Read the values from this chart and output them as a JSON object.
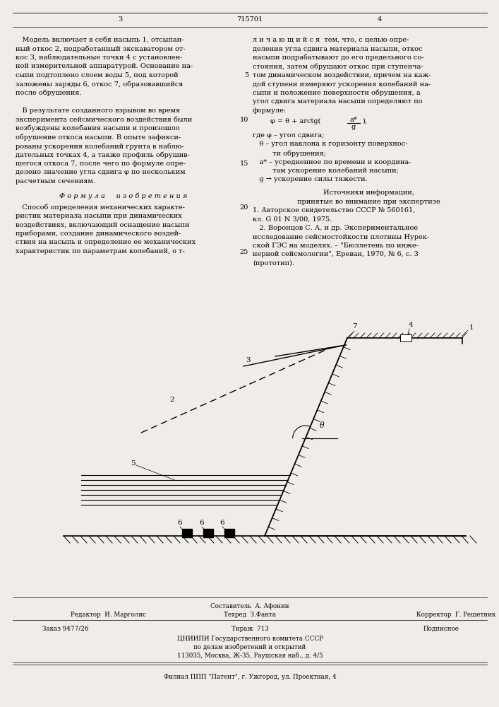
{
  "bg_color": "#f0ede8",
  "page_number_left": "3",
  "page_number_center": "715701",
  "page_number_right": "4",
  "col1_text": [
    "   Модель включает в себя насыпь 1, отсыпан-",
    "ный откос 2, подработанный экскаватором от-",
    "кос 3, наблюдательные точки 4 с установлен-",
    "ной измерительной аппаратурой. Основание на-",
    "сыпи подтоплено слоем воды 5, под которой",
    "заложены заряды 6, откос 7, образовавшийся",
    "после обрушения.",
    "",
    "   В результате созданного взрывом во время",
    "эксперимента сейсмического воздействия были",
    "возбуждены колебания насыпи и произошло",
    "обрушение откоса насыпи. В опыте зафикси-",
    "рованы ускорения колебаний грунта в наблю-",
    "дательных точках 4, а также профиль обрушив-",
    "шегося откоса 7, после чего по формуле опре-",
    "делено значение угла сдвига φ по нескольким",
    "расчетным сечениям."
  ],
  "formula_section_title": "Ф о р м у л а     и з о б р е т е н и я",
  "formula_section_text": [
    "   Способ определения механических характе-",
    "ристик материала насыпи при динамических",
    "воздействиях, включающий оснащение насыпи",
    "приборами, создание динамического воздей-",
    "ствия на насыпь и определение ее механических",
    "характеристик по параметрам колебаний, о т-"
  ],
  "col2_text_top": [
    "л и ч а ю щ и й с я  тем, что, с целью опре-",
    "деления угла сдвига материала насыпи, откос",
    "насыпи подрабатывают до его предельного со-",
    "стояния, затем обрушают откос при ступенча-",
    "том динамическом воздействии, причем на каж-",
    "дой ступени измеряют ускорения колебаний на-",
    "сыпи и положение поверхности обрушения, а",
    "угол сдвига материала насыпи определяют по",
    "формуле:"
  ],
  "col2_text_mid": [
    "где φ – угол сдвига;",
    "   θ – угол наклона к горизонту поверхнос-",
    "         ти обрушения;",
    "   a* – усредненное по времени и координа-",
    "         там ускорение колебаний насыпи;",
    "   g → ускорение силы тяжести."
  ],
  "sources_title": "Источники информации,",
  "sources_subtitle": "принятые во внимание при экспертизе",
  "source1": "1. Авторское свидетельство СССР № 560161,",
  "source1b": "кл. G 01 N 3/00, 1975.",
  "source2": "   2. Воронцов С. А. и др. Экспериментальное",
  "source2b": "исследование сейсмостойкости плотины Нурек-",
  "source2c": "ской ГЭС на моделях. – \"Бюллетень по инже-",
  "source2d": "нерной сейсмологии\", Ереван, 1970, № 6, с. 3",
  "source2e": "(прототип).",
  "line_numbers": [
    "5",
    "10",
    "15",
    "20",
    "25"
  ],
  "footer": {
    "editor": "Редактор  И. Марголис",
    "composer": "Составитель  А. Афонин",
    "techred": "Техред  З.Фанта",
    "corrector": "Корректор  Г. Решетник",
    "order": "Заказ 9477/26",
    "tirazh": "Тираж  713",
    "podpisnoe": "Подписное",
    "org_line1": "ЦНИИПИ Государственного комитета СССР",
    "org_line2": "по делам изобретений и открытий",
    "org_line3": "113035, Москва, Ж-35, Раушская наб., д. 4/5",
    "filial": "Филиал ППП \"Патент\", г. Ужгород, ул. Проектная, 4"
  }
}
